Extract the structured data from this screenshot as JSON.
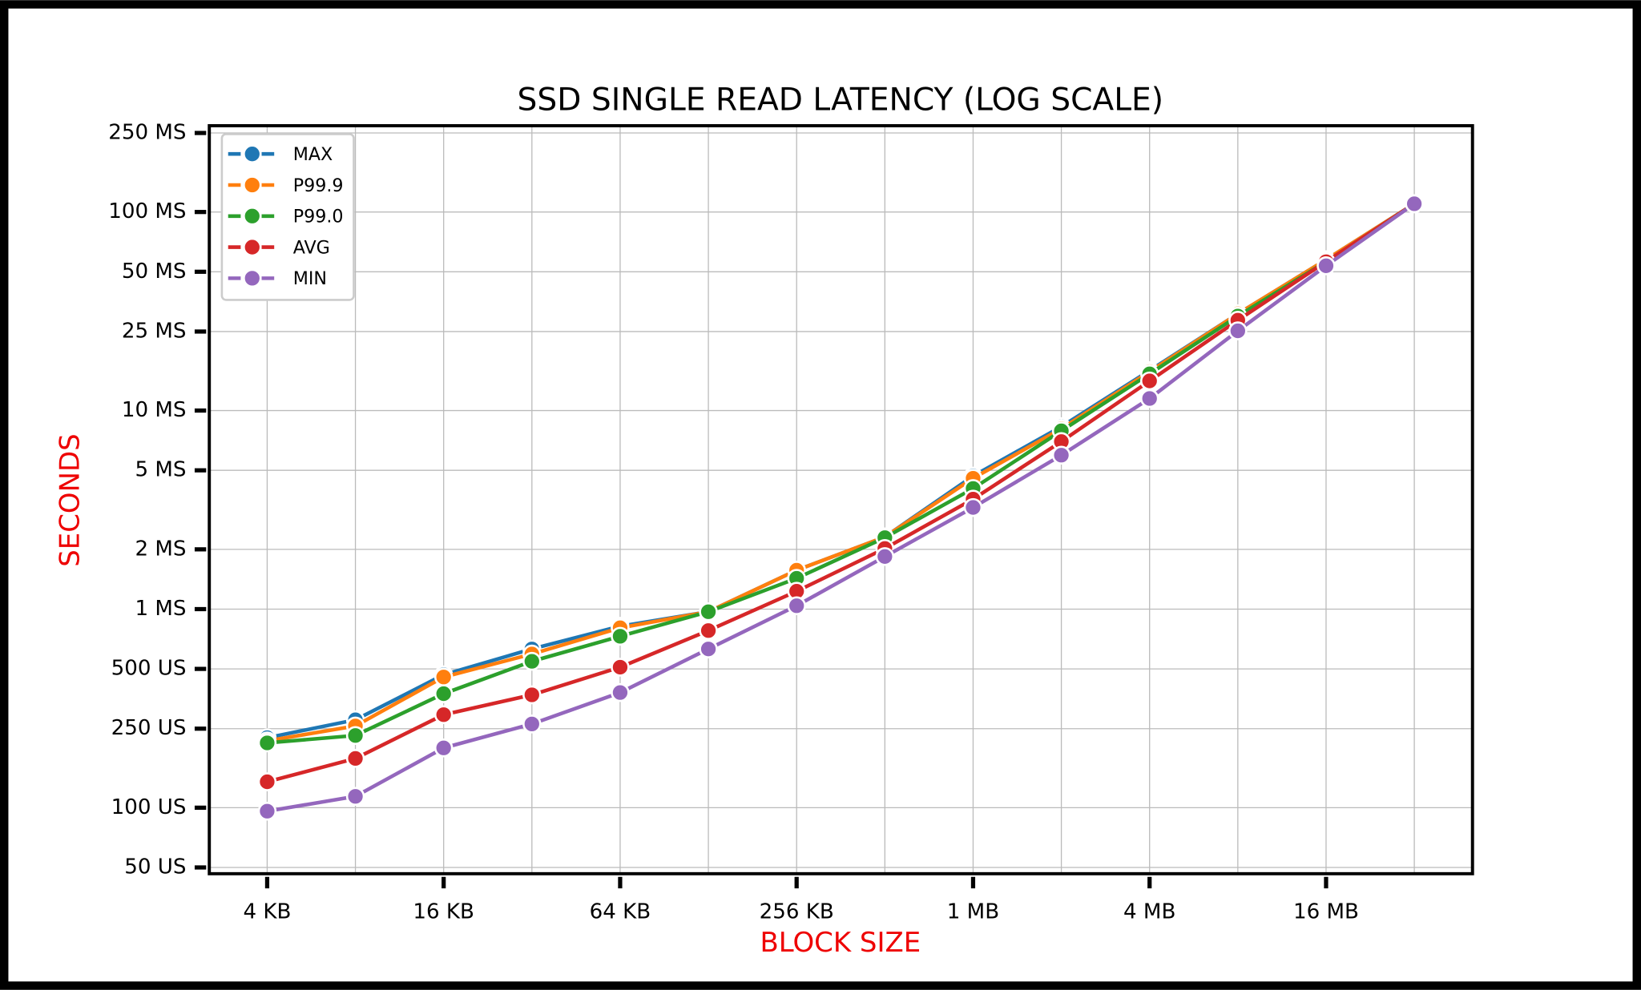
{
  "chart_data": {
    "type": "line",
    "title": "SSD SINGLE READ LATENCY (LOG SCALE)",
    "x_label": "BLOCK SIZE",
    "y_label": "SECONDS",
    "x": [
      4096,
      8192,
      16384,
      32768,
      65536,
      131072,
      262144,
      524288,
      1048576,
      2097152,
      4194304,
      8388608,
      16777216,
      33554432
    ],
    "series": [
      {
        "name": "MAX",
        "color": "#1f77b4",
        "values": [
          0.000225,
          0.000277,
          0.000467,
          0.00063,
          0.00082,
          0.00097,
          0.00157,
          0.00231,
          0.00468,
          0.0083,
          0.0159,
          0.0307,
          0.0575,
          0.11
        ]
      },
      {
        "name": "P99.9",
        "color": "#ff7f0e",
        "values": [
          0.000217,
          0.000258,
          0.000455,
          0.000594,
          0.000805,
          0.00097,
          0.00157,
          0.00231,
          0.00456,
          0.0081,
          0.0157,
          0.0307,
          0.0575,
          0.11
        ]
      },
      {
        "name": "P99.0",
        "color": "#2ca02c",
        "values": [
          0.000212,
          0.000231,
          0.000375,
          0.000546,
          0.00073,
          0.00097,
          0.00143,
          0.00229,
          0.00405,
          0.0079,
          0.0153,
          0.0299,
          0.0562,
          0.11
        ]
      },
      {
        "name": "AVG",
        "color": "#d62728",
        "values": [
          0.000135,
          0.000177,
          0.000294,
          0.00037,
          0.00051,
          0.00078,
          0.00123,
          0.00202,
          0.00358,
          0.00698,
          0.0141,
          0.0285,
          0.0562,
          0.11
        ]
      },
      {
        "name": "MIN",
        "color": "#9467bd",
        "values": [
          9.6e-05,
          0.000114,
          0.0002,
          0.000264,
          0.00038,
          0.00063,
          0.00104,
          0.00184,
          0.00325,
          0.00596,
          0.0115,
          0.0252,
          0.0536,
          0.11
        ]
      }
    ],
    "xscale": "log",
    "yscale": "log",
    "xlim": [
      2600,
      53000000
    ],
    "ylim": [
      4.65e-05,
      0.272
    ],
    "xticks": [
      {
        "value": 4096,
        "label": "4 KB"
      },
      {
        "value": 16384,
        "label": "16 KB"
      },
      {
        "value": 65536,
        "label": "64 KB"
      },
      {
        "value": 262144,
        "label": "256 KB"
      },
      {
        "value": 1048576,
        "label": "1 MB"
      },
      {
        "value": 4194304,
        "label": "4 MB"
      },
      {
        "value": 16777216,
        "label": "16 MB"
      }
    ],
    "yticks": [
      {
        "value": 5e-05,
        "label": "50 US"
      },
      {
        "value": 0.0001,
        "label": "100 US"
      },
      {
        "value": 0.00025,
        "label": "250 US"
      },
      {
        "value": 0.0005,
        "label": "500 US"
      },
      {
        "value": 0.001,
        "label": "1 MS"
      },
      {
        "value": 0.002,
        "label": "2 MS"
      },
      {
        "value": 0.005,
        "label": "5 MS"
      },
      {
        "value": 0.01,
        "label": "10 MS"
      },
      {
        "value": 0.025,
        "label": "25 MS"
      },
      {
        "value": 0.05,
        "label": "50 MS"
      },
      {
        "value": 0.1,
        "label": "100 MS"
      },
      {
        "value": 0.25,
        "label": "250 MS"
      }
    ],
    "grid": true,
    "legend": "upper left"
  }
}
